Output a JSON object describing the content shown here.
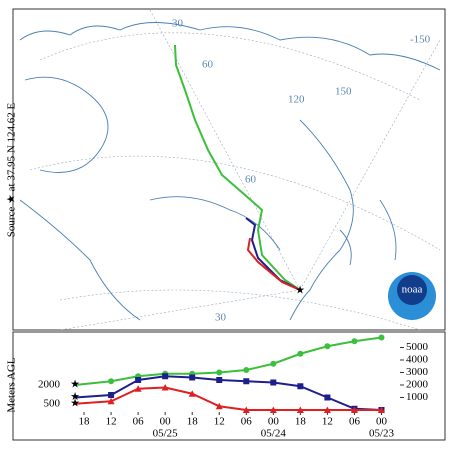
{
  "source_label": "Source ★ at 37.95 N 124.62 E",
  "map_labels": [
    "30",
    "60",
    "120",
    "-150",
    "150",
    "60",
    "30"
  ],
  "logo": "noaa",
  "chart_data": {
    "type": "line",
    "y_label": "Meters AGL",
    "x": [
      4,
      12,
      18,
      24,
      30,
      36,
      42,
      48,
      54,
      60,
      66,
      72
    ],
    "xlim": [
      0,
      75
    ],
    "xticks": [
      {
        "value": 6,
        "label": "18"
      },
      {
        "value": 12,
        "label": "12"
      },
      {
        "value": 18,
        "label": "06"
      },
      {
        "value": 24,
        "label": "00"
      },
      {
        "value": 30,
        "label": "18"
      },
      {
        "value": 36,
        "label": "12"
      },
      {
        "value": 42,
        "label": "06"
      },
      {
        "value": 48,
        "label": "00"
      },
      {
        "value": 54,
        "label": "18"
      },
      {
        "value": 60,
        "label": "12"
      },
      {
        "value": 66,
        "label": "06"
      },
      {
        "value": 72,
        "label": "00"
      }
    ],
    "date_ticks": [
      {
        "value": 24,
        "label": "05/25"
      },
      {
        "value": 48,
        "label": "05/24"
      },
      {
        "value": 72,
        "label": "05/23"
      }
    ],
    "ylim": [
      0,
      6000
    ],
    "yticks": [
      1000,
      2000,
      3000,
      4000,
      5000
    ],
    "start_labels": [
      {
        "value": 2000,
        "label": "2000"
      },
      {
        "value": 500,
        "label": "500"
      }
    ],
    "series": [
      {
        "color": "#3cbf3c",
        "marker": "circle",
        "values": [
          2000,
          2300,
          2700,
          2900,
          2900,
          3000,
          3200,
          3700,
          4500,
          5100,
          5500,
          5800
        ]
      },
      {
        "color": "#1e1e8c",
        "marker": "square",
        "values": [
          1000,
          1200,
          2400,
          2700,
          2600,
          2400,
          2300,
          2200,
          1900,
          1000,
          100,
          0
        ]
      },
      {
        "color": "#e02020",
        "marker": "triangle",
        "values": [
          500,
          700,
          1700,
          1800,
          1300,
          300,
          0,
          0,
          0,
          0,
          0,
          0
        ]
      }
    ]
  }
}
